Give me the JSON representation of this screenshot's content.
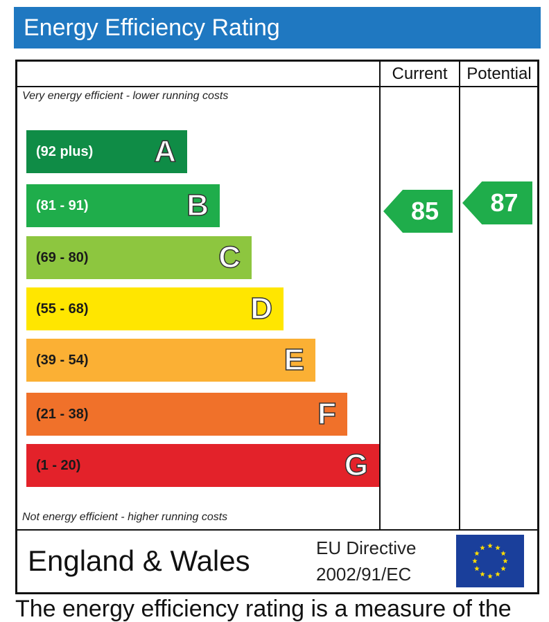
{
  "header": {
    "title": "Energy Efficiency Rating"
  },
  "columns": {
    "current": "Current",
    "potential": "Potential"
  },
  "notes": {
    "top": "Very energy efficient - lower running costs",
    "bottom": "Not energy efficient - higher running costs"
  },
  "chart_data": {
    "type": "bar",
    "title": "Energy Efficiency Rating",
    "bands": [
      {
        "letter": "A",
        "range": "(92 plus)",
        "color": "#0f8c46",
        "text_color": "#ffffff"
      },
      {
        "letter": "B",
        "range": "(81 - 91)",
        "color": "#1fad4b",
        "text_color": "#ffffff"
      },
      {
        "letter": "C",
        "range": "(69 - 80)",
        "color": "#8dc63f",
        "text_color": "#1a1a1a"
      },
      {
        "letter": "D",
        "range": "(55 - 68)",
        "color": "#ffe600",
        "text_color": "#1a1a1a"
      },
      {
        "letter": "E",
        "range": "(39 - 54)",
        "color": "#fbb034",
        "text_color": "#1a1a1a"
      },
      {
        "letter": "F",
        "range": "(21 - 38)",
        "color": "#f0712a",
        "text_color": "#1a1a1a"
      },
      {
        "letter": "G",
        "range": "(1 - 20)",
        "color": "#e3222a",
        "text_color": "#1a1a1a"
      }
    ],
    "current": {
      "value": 85,
      "band": "B"
    },
    "potential": {
      "value": 87,
      "band": "B"
    }
  },
  "footer": {
    "region": "England & Wales",
    "directive_line1": "EU Directive",
    "directive_line2": "2002/91/EC",
    "flag_icon": "eu-flag-icon"
  },
  "cutoff_text": "The energy efficiency rating is a measure of the"
}
